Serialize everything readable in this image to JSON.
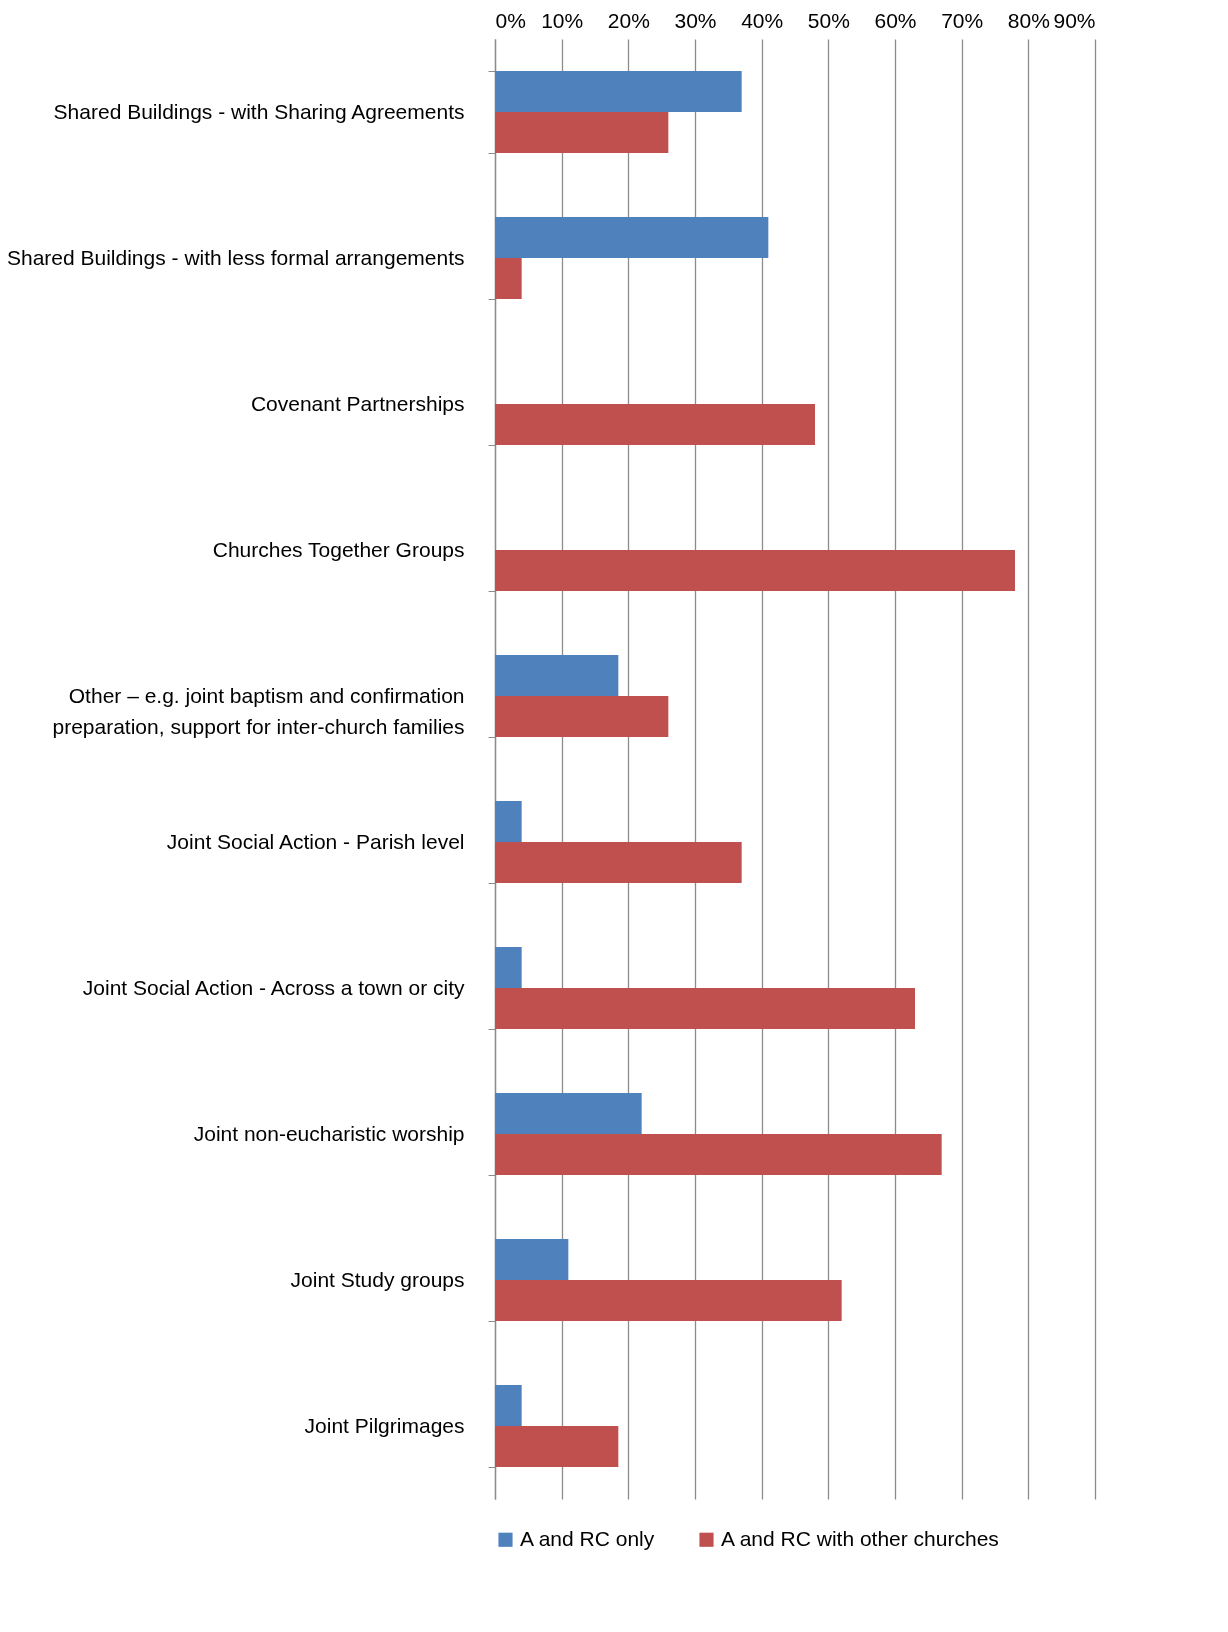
{
  "chart_data": {
    "type": "bar",
    "orientation": "horizontal",
    "categories": [
      "Shared Buildings - with Sharing Agreements",
      "Shared Buildings - with less formal arrangements",
      "Covenant Partnerships",
      "Churches Together Groups",
      "Other – e.g. joint baptism and confirmation preparation, support for inter-church families",
      "Joint Social Action - Parish level",
      "Joint Social Action - Across a town or city",
      "Joint non-eucharistic worship",
      "Joint Study groups",
      "Joint Pilgrimages"
    ],
    "series": [
      {
        "name": "A and RC only",
        "color": "#4f81bd",
        "values": [
          37,
          41,
          null,
          null,
          18.5,
          4,
          4,
          22,
          11,
          4
        ]
      },
      {
        "name": "A and RC with other churches",
        "color": "#c0504d",
        "values": [
          26,
          4,
          48,
          78,
          26,
          37,
          63,
          67,
          52,
          18.5
        ]
      }
    ],
    "xlim": [
      0,
      90
    ],
    "xticks": [
      {
        "value": 0,
        "label": "0%"
      },
      {
        "value": 10,
        "label": "10%"
      },
      {
        "value": 20,
        "label": "20%"
      },
      {
        "value": 30,
        "label": "30%"
      },
      {
        "value": 40,
        "label": "40%"
      },
      {
        "value": 50,
        "label": "50%"
      },
      {
        "value": 60,
        "label": "60%"
      },
      {
        "value": 70,
        "label": "70%"
      },
      {
        "value": 80,
        "label": "80%"
      },
      {
        "value": 90,
        "label": "90%"
      }
    ],
    "grid": "x",
    "legend": "bottom"
  }
}
